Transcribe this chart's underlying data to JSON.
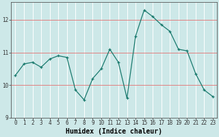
{
  "x": [
    0,
    1,
    2,
    3,
    4,
    5,
    6,
    7,
    8,
    9,
    10,
    11,
    12,
    13,
    14,
    15,
    16,
    17,
    18,
    19,
    20,
    21,
    22,
    23
  ],
  "y": [
    10.3,
    10.65,
    10.7,
    10.55,
    10.8,
    10.9,
    10.85,
    9.85,
    9.55,
    10.2,
    10.5,
    11.1,
    10.7,
    9.6,
    11.5,
    12.3,
    12.1,
    11.85,
    11.65,
    11.1,
    11.05,
    10.35,
    9.85,
    9.65
  ],
  "xlabel": "Humidex (Indice chaleur)",
  "ylim": [
    9.0,
    12.55
  ],
  "xlim": [
    -0.5,
    23.5
  ],
  "yticks": [
    9,
    10,
    11,
    12
  ],
  "xticks": [
    0,
    1,
    2,
    3,
    4,
    5,
    6,
    7,
    8,
    9,
    10,
    11,
    12,
    13,
    14,
    15,
    16,
    17,
    18,
    19,
    20,
    21,
    22,
    23
  ],
  "line_color": "#1a7a6e",
  "marker": "+",
  "marker_size": 3.5,
  "bg_color": "#cde8e8",
  "grid_color_white": "#ffffff",
  "tick_label_fontsize": 5.5,
  "xlabel_fontsize": 7,
  "red_hline_color": "#e08080",
  "red_hlines": [
    10,
    11,
    12
  ],
  "spine_color": "#555555"
}
